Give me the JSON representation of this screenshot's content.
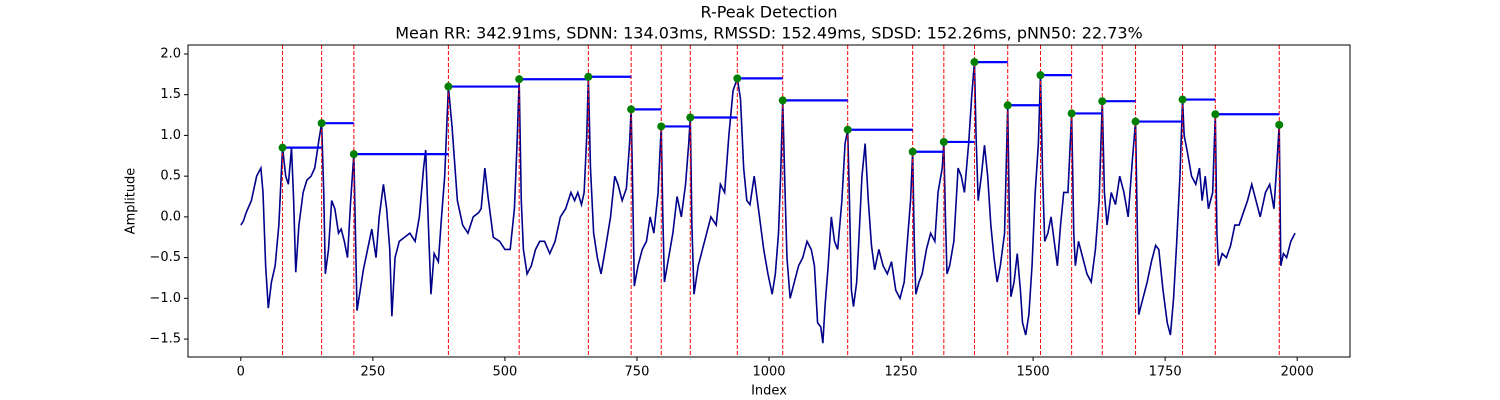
{
  "chart_data": {
    "type": "line",
    "title": "R-Peak Detection",
    "subtitle": "Mean RR: 342.91ms, SDNN: 134.03ms, RMSSD: 152.49ms, SDSD: 152.26ms, pNN50: 22.73%",
    "xlabel": "Index",
    "ylabel": "Amplitude",
    "xlim": [
      -100,
      2100
    ],
    "ylim": [
      -1.72,
      2.11
    ],
    "xticks": [
      0,
      250,
      500,
      750,
      1000,
      1250,
      1500,
      1750,
      2000
    ],
    "yticks": [
      {
        "value": -1.5,
        "label": "−1.5"
      },
      {
        "value": -1.0,
        "label": "−1.0"
      },
      {
        "value": -0.5,
        "label": "−0.5"
      },
      {
        "value": 0,
        "label": "0.0"
      },
      0.5,
      {
        "value": 1.0,
        "label": "1.0"
      },
      1.5,
      {
        "value": 2.0,
        "label": "2.0"
      }
    ],
    "series": [
      {
        "color": "#00008b",
        "x": [
          0,
          5,
          10,
          20,
          30,
          38,
          42,
          47,
          52,
          58,
          65,
          72,
          79,
          85,
          90,
          96,
          100,
          104,
          110,
          118,
          125,
          133,
          140,
          148,
          153,
          157,
          160,
          166,
          172,
          178,
          185,
          190,
          196,
          202,
          208,
          214,
          217,
          220,
          226,
          232,
          240,
          248,
          256,
          262,
          270,
          276,
          282,
          286,
          292,
          300,
          310,
          320,
          330,
          338,
          346,
          350,
          354,
          360,
          366,
          374,
          380,
          386,
          393,
          400,
          410,
          420,
          430,
          440,
          450,
          455,
          462,
          468,
          478,
          490,
          500,
          510,
          518,
          523,
          527,
          531,
          535,
          542,
          550,
          558,
          566,
          575,
          585,
          595,
          605,
          615,
          625,
          632,
          638,
          645,
          650,
          655,
          658,
          662,
          668,
          675,
          682,
          690,
          700,
          708,
          714,
          722,
          730,
          736,
          739,
          742,
          745,
          752,
          760,
          768,
          775,
          782,
          790,
          796,
          799,
          802,
          810,
          818,
          826,
          834,
          842,
          848,
          851,
          854,
          858,
          866,
          874,
          882,
          890,
          900,
          908,
          916,
          924,
          932,
          940,
          946,
          952,
          958,
          964,
          972,
          980,
          990,
          998,
          1006,
          1012,
          1018,
          1022,
          1026,
          1030,
          1034,
          1040,
          1048,
          1056,
          1064,
          1072,
          1080,
          1086,
          1092,
          1098,
          1102,
          1106,
          1112,
          1118,
          1124,
          1130,
          1138,
          1144,
          1149,
          1152,
          1156,
          1160,
          1166,
          1170,
          1176,
          1182,
          1188,
          1194,
          1200,
          1208,
          1216,
          1224,
          1232,
          1240,
          1248,
          1256,
          1262,
          1268,
          1272,
          1275,
          1278,
          1284,
          1290,
          1298,
          1306,
          1314,
          1320,
          1328,
          1331,
          1334,
          1337,
          1342,
          1350,
          1358,
          1364,
          1370,
          1378,
          1384,
          1389,
          1392,
          1396,
          1402,
          1408,
          1414,
          1420,
          1426,
          1432,
          1438,
          1446,
          1452,
          1455,
          1458,
          1464,
          1470,
          1476,
          1480,
          1486,
          1492,
          1498,
          1504,
          1510,
          1514,
          1518,
          1522,
          1528,
          1534,
          1540,
          1546,
          1552,
          1558,
          1566,
          1573,
          1577,
          1580,
          1586,
          1594,
          1602,
          1610,
          1618,
          1625,
          1631,
          1635,
          1640,
          1648,
          1656,
          1664,
          1672,
          1680,
          1688,
          1694,
          1697,
          1700,
          1708,
          1716,
          1724,
          1732,
          1738,
          1746,
          1754,
          1760,
          1766,
          1772,
          1778,
          1783,
          1786,
          1792,
          1800,
          1808,
          1815,
          1820,
          1826,
          1832,
          1840,
          1845,
          1848,
          1851,
          1858,
          1866,
          1874,
          1882,
          1890,
          1898,
          1906,
          1914,
          1922,
          1930,
          1940,
          1948,
          1956,
          1962,
          1966,
          1969,
          1974,
          1980,
          1988,
          1996
        ],
        "values": [
          -0.1,
          -0.05,
          0.05,
          0.2,
          0.5,
          0.6,
          0.3,
          -0.6,
          -1.12,
          -0.8,
          -0.6,
          -0.1,
          0.85,
          0.5,
          0.4,
          0.85,
          0.2,
          -0.68,
          -0.1,
          0.3,
          0.45,
          0.5,
          0.6,
          0.95,
          1.15,
          0.3,
          -0.7,
          -0.4,
          0.2,
          0.1,
          -0.2,
          -0.15,
          -0.3,
          -0.5,
          0.2,
          0.77,
          -0.2,
          -1.15,
          -0.9,
          -0.65,
          -0.4,
          -0.15,
          -0.5,
          0.0,
          0.4,
          0.1,
          -0.4,
          -1.22,
          -0.5,
          -0.3,
          -0.25,
          -0.2,
          -0.3,
          0.0,
          0.6,
          0.82,
          0.1,
          -0.95,
          -0.45,
          -0.55,
          0.0,
          0.5,
          1.6,
          1.1,
          0.2,
          -0.1,
          -0.2,
          0.0,
          0.05,
          0.1,
          0.6,
          0.25,
          -0.25,
          -0.3,
          -0.4,
          -0.4,
          0.1,
          0.9,
          1.69,
          0.2,
          -0.4,
          -0.7,
          -0.6,
          -0.4,
          -0.3,
          -0.3,
          -0.45,
          -0.3,
          0.0,
          0.1,
          0.3,
          0.2,
          0.3,
          0.15,
          0.3,
          1.0,
          1.72,
          0.6,
          -0.2,
          -0.5,
          -0.7,
          -0.4,
          0.0,
          0.5,
          0.4,
          0.2,
          0.35,
          0.9,
          1.32,
          0.3,
          -0.85,
          -0.6,
          -0.4,
          -0.3,
          0.0,
          -0.2,
          0.3,
          1.11,
          0.0,
          -0.8,
          -0.5,
          -0.2,
          0.25,
          0.0,
          0.4,
          0.9,
          1.22,
          -0.1,
          -0.95,
          -0.6,
          -0.4,
          -0.2,
          0.0,
          -0.1,
          0.4,
          0.3,
          1.0,
          1.55,
          1.7,
          1.45,
          0.6,
          0.2,
          0.15,
          0.5,
          0.1,
          -0.4,
          -0.7,
          -0.95,
          -0.7,
          -0.2,
          0.5,
          1.43,
          0.4,
          -0.5,
          -1.0,
          -0.8,
          -0.6,
          -0.5,
          -0.3,
          -0.4,
          -0.6,
          -1.3,
          -1.35,
          -1.55,
          -1.1,
          -0.6,
          0.0,
          -0.3,
          -0.4,
          0.2,
          0.9,
          1.07,
          0.3,
          -0.9,
          -1.1,
          -0.8,
          -0.3,
          0.5,
          0.9,
          0.2,
          -0.35,
          -0.65,
          -0.4,
          -0.6,
          -0.7,
          -0.55,
          -0.9,
          -1.0,
          -0.8,
          -0.3,
          0.2,
          0.8,
          -0.3,
          -0.95,
          -0.8,
          -0.7,
          -0.4,
          -0.2,
          -0.3,
          0.3,
          0.6,
          0.92,
          0.0,
          -0.7,
          -0.6,
          -0.3,
          0.6,
          0.5,
          0.3,
          0.9,
          1.5,
          1.9,
          1.0,
          0.2,
          0.5,
          0.88,
          0.5,
          -0.1,
          -0.5,
          -0.8,
          -0.6,
          -0.2,
          1.37,
          0.0,
          -0.98,
          -0.8,
          -0.45,
          -0.9,
          -1.3,
          -1.45,
          -1.2,
          -0.6,
          0.3,
          0.9,
          1.74,
          0.5,
          -0.3,
          -0.2,
          0.0,
          -0.3,
          -0.6,
          -0.1,
          0.3,
          0.3,
          1.27,
          -0.2,
          -0.6,
          -0.3,
          -0.5,
          -0.7,
          -0.8,
          -0.4,
          0.2,
          1.42,
          0.3,
          -0.1,
          0.3,
          0.15,
          0.5,
          0.3,
          0.0,
          0.7,
          1.17,
          0.0,
          -1.2,
          -1.0,
          -0.8,
          -0.55,
          -0.35,
          -0.4,
          -0.9,
          -1.3,
          -1.45,
          -1.0,
          -0.3,
          0.5,
          1.44,
          1.0,
          0.8,
          0.5,
          0.4,
          0.6,
          0.2,
          0.5,
          0.1,
          0.3,
          1.26,
          -0.2,
          -0.6,
          -0.45,
          -0.5,
          -0.35,
          -0.1,
          -0.1,
          0.05,
          0.2,
          0.4,
          0.2,
          0.0,
          0.3,
          0.4,
          0.1,
          0.7,
          1.13,
          -0.6,
          -0.45,
          -0.5,
          -0.3,
          -0.2
        ]
      }
    ],
    "peaks": {
      "color": "#008000",
      "line_color": "#ff0000",
      "rr_color": "#0000ff",
      "x": [
        79,
        153,
        214,
        393,
        527,
        658,
        739,
        796,
        851,
        940,
        1026,
        1149,
        1272,
        1331,
        1389,
        1452,
        1514,
        1573,
        1631,
        1694,
        1783,
        1845,
        1966
      ],
      "values": [
        0.85,
        1.15,
        0.77,
        1.6,
        1.69,
        1.72,
        1.32,
        1.11,
        1.22,
        1.7,
        1.43,
        1.07,
        0.8,
        0.92,
        1.9,
        1.37,
        1.74,
        1.27,
        1.42,
        1.17,
        1.44,
        1.26,
        1.13
      ]
    }
  }
}
